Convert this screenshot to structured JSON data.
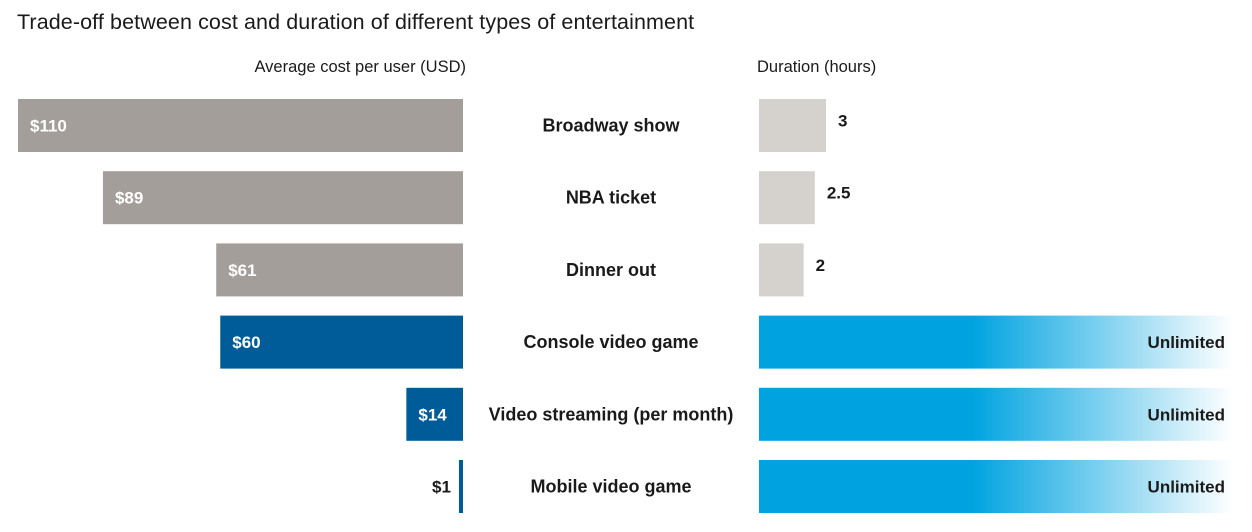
{
  "chart_data": {
    "type": "bar",
    "title": "Trade-off between cost and duration of different types of entertainment",
    "categories": [
      "Broadway show",
      "NBA ticket",
      "Dinner out",
      "Console video game",
      "Video streaming (per month)",
      "Mobile video game"
    ],
    "series": [
      {
        "name": "Average cost per user (USD)",
        "values": [
          110,
          89,
          61,
          60,
          14,
          1
        ],
        "labels": [
          "$110",
          "$89",
          "$61",
          "$60",
          "$14",
          "$1"
        ]
      },
      {
        "name": "Duration (hours)",
        "values": [
          3,
          2.5,
          2,
          null,
          null,
          null
        ],
        "labels": [
          "3",
          "2.5",
          "2",
          "Unlimited",
          "Unlimited",
          "Unlimited"
        ]
      }
    ],
    "colors": {
      "cost_traditional": "#a39e99",
      "cost_video_game": "#005b99",
      "duration_traditional": "#d5d2cd",
      "duration_unlimited": "#00a3e0"
    },
    "video_game_categories": [
      "Console video game",
      "Video streaming (per month)",
      "Mobile video game"
    ]
  }
}
